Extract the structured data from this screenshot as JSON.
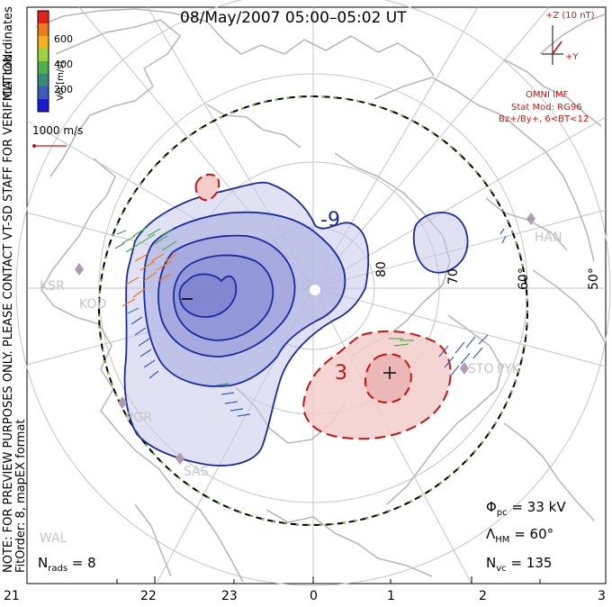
{
  "title": "08/May/2007 05:00–05:02 UT",
  "colorbar": {
    "label": "Vel [m/s]",
    "tick_labels": [
      "600",
      "400",
      "200"
    ],
    "colors": [
      "#e8201a",
      "#f07a1a",
      "#f7b21a",
      "#9ad33a",
      "#4fb04a",
      "#3a8a7a",
      "#3a5fb8",
      "#1a1ad8"
    ]
  },
  "coord_label": "MLT coordinates",
  "note": "NOTE: FOR PREVIEW PURPOSES ONLY. PLEASE CONTACT VT-SD STAFF FOR VERIFICATION.",
  "fit_order": "FitOrder: 8, mapEX format",
  "scale_vector_label": "1000 m/s",
  "imf": {
    "z_label": "+Z (10 nT)",
    "y_label": "+Y",
    "source": "OMNI IMF",
    "stat_mod": "Stat Mod: RG96",
    "conditions": "Bz+/By+, 6<BT<12"
  },
  "contour_labels": {
    "neg": "-9",
    "pos": "3",
    "min_marker": "–",
    "max_marker": "+"
  },
  "lat_labels": [
    "80",
    "70",
    "60°",
    "50°"
  ],
  "stations": [
    "HAN",
    "KSR",
    "KOD",
    "PGR",
    "SAS",
    "WAL",
    "PYK",
    "STO"
  ],
  "stats": {
    "phi_pc_label": "Φ",
    "phi_pc_sub": "pc",
    "phi_pc_value": "= 33 kV",
    "lambda_label": "Λ",
    "lambda_sub": "HM",
    "lambda_value": "= 60°",
    "nvc_label": "N",
    "nvc_sub": "vc",
    "nvc_value": "= 135",
    "nrads_label": "N",
    "nrads_sub": "rads",
    "nrads_value": "= 8"
  },
  "mlt_ticks": [
    "21",
    "22",
    "23",
    "0",
    "1",
    "2",
    "3"
  ],
  "colors": {
    "neg_contour": "#1a2aa0",
    "neg_fill": "#c7c9ea",
    "pos_contour": "#c8140e",
    "pos_fill": "#f3cccc",
    "imf_red": "#d0160e",
    "coast": "#b8b8b8",
    "grid": "#c4c4c4"
  }
}
